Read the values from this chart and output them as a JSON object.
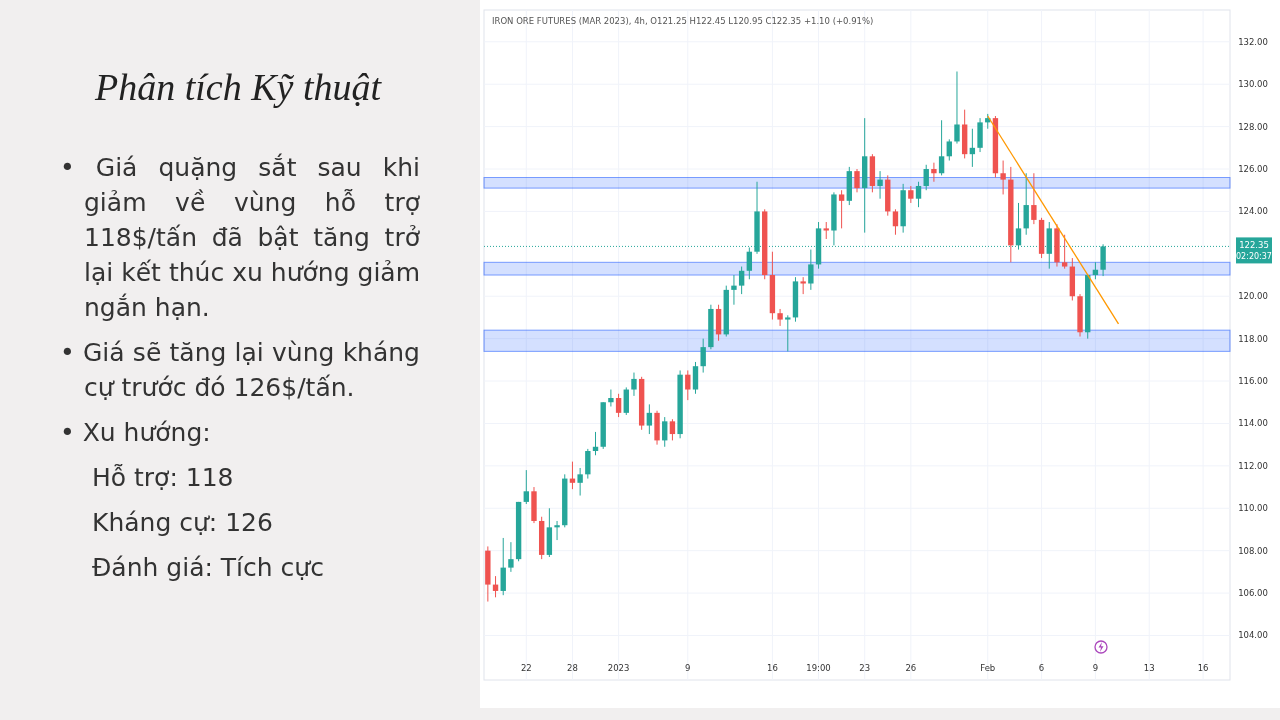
{
  "chart_data": [
    {
      "type": "other",
      "title": "Phân tích Kỹ thuật",
      "annotations": [
        "• Giá quặng sắt sau khi giảm về vùng hỗ trợ 118$/tấn đã bật tăng trở lại kết thúc xu hướng giảm ngắn hạn.",
        "• Giá sẽ tăng lại vùng kháng cự trước đó 126$/tấn.",
        "• Xu hướng:",
        "Hỗ trợ: 118",
        "Kháng cự: 126",
        "Đánh giá: Tích cực"
      ]
    },
    {
      "type": "candlestick",
      "title": "IRON ORE FUTURES (MAR 2023), 4h, O121.25 H122.45 L120.95 C122.35 +1.10 (+0.91%)",
      "categories": [
        null,
        null,
        null,
        null,
        null,
        "22",
        null,
        null,
        null,
        null,
        null,
        "28",
        null,
        null,
        null,
        null,
        null,
        "2023",
        null,
        null,
        null,
        null,
        null,
        null,
        null,
        null,
        "9",
        null,
        null,
        null,
        null,
        null,
        null,
        null,
        null,
        null,
        null,
        "16",
        null,
        null,
        null,
        null,
        null,
        "19:00",
        null,
        null,
        null,
        null,
        null,
        "23",
        null,
        null,
        null,
        null,
        null,
        "26",
        null,
        null,
        null,
        null,
        null,
        null,
        null,
        null,
        null,
        "Feb",
        null,
        null,
        null,
        null,
        null,
        null,
        "6",
        null,
        null,
        null,
        null,
        null,
        null,
        "9",
        null,
        null,
        null,
        null,
        null,
        null,
        "13",
        null,
        null,
        null,
        null,
        null,
        null,
        "16",
        null,
        null,
        null
      ],
      "ohlc": [
        [
          108.0,
          108.2,
          105.6,
          106.4
        ],
        [
          106.4,
          106.8,
          105.8,
          106.1
        ],
        [
          106.1,
          108.6,
          105.9,
          107.2
        ],
        [
          107.2,
          108.4,
          107.0,
          107.6
        ],
        [
          107.6,
          110.3,
          107.5,
          110.3
        ],
        [
          110.3,
          111.8,
          110.2,
          110.8
        ],
        [
          110.8,
          111.0,
          109.3,
          109.4
        ],
        [
          109.4,
          109.6,
          107.6,
          107.8
        ],
        [
          107.8,
          110.0,
          107.7,
          109.1
        ],
        [
          109.1,
          109.4,
          108.5,
          109.2
        ],
        [
          109.2,
          111.6,
          109.1,
          111.4
        ],
        [
          111.4,
          112.2,
          110.9,
          111.2
        ],
        [
          111.2,
          111.9,
          110.6,
          111.6
        ],
        [
          111.6,
          112.8,
          111.4,
          112.7
        ],
        [
          112.7,
          113.6,
          112.5,
          112.9
        ],
        [
          112.9,
          115.0,
          112.8,
          115.0
        ],
        [
          115.0,
          115.6,
          114.8,
          115.2
        ],
        [
          115.2,
          115.4,
          114.3,
          114.5
        ],
        [
          114.5,
          115.7,
          114.4,
          115.6
        ],
        [
          115.6,
          116.4,
          115.3,
          116.1
        ],
        [
          116.1,
          116.2,
          113.7,
          113.9
        ],
        [
          113.9,
          114.9,
          113.5,
          114.5
        ],
        [
          114.5,
          114.6,
          113.0,
          113.2
        ],
        [
          113.2,
          114.3,
          112.9,
          114.1
        ],
        [
          114.1,
          114.2,
          113.2,
          113.5
        ],
        [
          113.5,
          116.5,
          113.3,
          116.3
        ],
        [
          116.3,
          116.5,
          115.1,
          115.6
        ],
        [
          115.6,
          116.9,
          115.4,
          116.7
        ],
        [
          116.7,
          118.0,
          116.4,
          117.6
        ],
        [
          117.6,
          119.6,
          117.5,
          119.4
        ],
        [
          119.4,
          119.6,
          117.9,
          118.2
        ],
        [
          118.2,
          120.5,
          118.1,
          120.3
        ],
        [
          120.3,
          121.0,
          119.6,
          120.5
        ],
        [
          120.5,
          121.4,
          120.1,
          121.2
        ],
        [
          121.2,
          122.3,
          120.8,
          122.1
        ],
        [
          122.1,
          125.4,
          122.0,
          124.0
        ],
        [
          124.0,
          124.1,
          120.8,
          121.0
        ],
        [
          121.0,
          122.1,
          118.9,
          119.2
        ],
        [
          119.2,
          119.4,
          118.6,
          118.9
        ],
        [
          118.9,
          119.1,
          117.4,
          119.0
        ],
        [
          119.0,
          120.9,
          118.8,
          120.7
        ],
        [
          120.7,
          120.9,
          120.1,
          120.6
        ],
        [
          120.6,
          122.2,
          120.3,
          121.5
        ],
        [
          121.5,
          123.5,
          121.3,
          123.2
        ],
        [
          123.2,
          123.5,
          122.7,
          123.1
        ],
        [
          123.1,
          124.9,
          122.4,
          124.8
        ],
        [
          124.8,
          125.0,
          123.2,
          124.5
        ],
        [
          124.5,
          126.1,
          124.3,
          125.9
        ],
        [
          125.9,
          126.0,
          124.9,
          125.1
        ],
        [
          125.1,
          128.4,
          123.0,
          126.6
        ],
        [
          126.6,
          126.7,
          124.9,
          125.2
        ],
        [
          125.2,
          125.9,
          124.6,
          125.5
        ],
        [
          125.5,
          125.7,
          123.8,
          124.0
        ],
        [
          124.0,
          124.1,
          122.9,
          123.3
        ],
        [
          123.3,
          125.3,
          123.0,
          125.0
        ],
        [
          125.0,
          125.2,
          124.4,
          124.6
        ],
        [
          124.6,
          125.4,
          124.2,
          125.2
        ],
        [
          125.2,
          126.2,
          125.0,
          126.0
        ],
        [
          126.0,
          126.3,
          125.4,
          125.8
        ],
        [
          125.8,
          128.3,
          125.7,
          126.6
        ],
        [
          126.6,
          127.4,
          126.4,
          127.3
        ],
        [
          127.3,
          130.6,
          127.2,
          128.1
        ],
        [
          128.1,
          128.8,
          126.5,
          126.7
        ],
        [
          126.7,
          127.9,
          126.1,
          127.0
        ],
        [
          127.0,
          128.4,
          126.8,
          128.2
        ],
        [
          128.2,
          128.6,
          127.9,
          128.4
        ],
        [
          128.4,
          128.5,
          125.6,
          125.8
        ],
        [
          125.8,
          126.4,
          124.8,
          125.5
        ],
        [
          125.5,
          126.1,
          121.6,
          122.4
        ],
        [
          122.4,
          124.4,
          122.2,
          123.2
        ],
        [
          123.2,
          125.8,
          122.9,
          124.3
        ],
        [
          124.3,
          125.8,
          123.4,
          123.6
        ],
        [
          123.6,
          123.7,
          121.8,
          122.0
        ],
        [
          122.0,
          123.5,
          121.3,
          123.2
        ],
        [
          123.2,
          123.4,
          121.4,
          121.6
        ],
        [
          121.6,
          122.9,
          121.3,
          121.4
        ],
        [
          121.4,
          121.8,
          119.8,
          120.0
        ],
        [
          120.0,
          120.1,
          118.1,
          118.3
        ],
        [
          118.3,
          121.0,
          118.0,
          121.0
        ],
        [
          121.0,
          121.6,
          120.8,
          121.25
        ],
        [
          121.25,
          122.45,
          120.95,
          122.35
        ],
        null,
        null,
        null,
        null,
        null,
        null,
        null,
        null,
        null,
        null,
        null,
        null,
        null,
        null,
        null,
        null
      ],
      "colors": [
        "#ef5350",
        "#ef5350",
        "#26a69a",
        "#26a69a",
        "#26a69a",
        "#26a69a",
        "#ef5350",
        "#ef5350",
        "#26a69a",
        "#26a69a",
        "#26a69a",
        "#ef5350",
        "#26a69a",
        "#26a69a",
        "#26a69a",
        "#26a69a",
        "#26a69a",
        "#ef5350",
        "#26a69a",
        "#26a69a",
        "#ef5350",
        "#26a69a",
        "#ef5350",
        "#26a69a",
        "#ef5350",
        "#26a69a",
        "#ef5350",
        "#26a69a",
        "#26a69a",
        "#26a69a",
        "#ef5350",
        "#26a69a",
        "#26a69a",
        "#26a69a",
        "#26a69a",
        "#26a69a",
        "#ef5350",
        "#ef5350",
        "#ef5350",
        "#26a69a",
        "#26a69a",
        "#ef5350",
        "#26a69a",
        "#26a69a",
        "#ef5350",
        "#26a69a",
        "#ef5350",
        "#26a69a",
        "#ef5350",
        "#26a69a",
        "#ef5350",
        "#26a69a",
        "#ef5350",
        "#ef5350",
        "#26a69a",
        "#ef5350",
        "#26a69a",
        "#26a69a",
        "#ef5350",
        "#26a69a",
        "#26a69a",
        "#26a69a",
        "#ef5350",
        "#26a69a",
        "#26a69a",
        "#26a69a",
        "#ef5350",
        "#ef5350",
        "#ef5350",
        "#26a69a",
        "#26a69a",
        "#ef5350",
        "#ef5350",
        "#26a69a",
        "#ef5350",
        "#ef5350",
        "#ef5350",
        "#ef5350",
        "#26a69a",
        "#26a69a",
        "#26a69a",
        null,
        null,
        null,
        null,
        null,
        null,
        null,
        null,
        null,
        null,
        null,
        null,
        null,
        null,
        null,
        null
      ],
      "series": [
        {
          "type": "line",
          "color": "#ff9800",
          "values": [
            null,
            null,
            null,
            null,
            null,
            null,
            null,
            null,
            null,
            null,
            null,
            null,
            null,
            null,
            null,
            null,
            null,
            null,
            null,
            null,
            null,
            null,
            null,
            null,
            null,
            null,
            null,
            null,
            null,
            null,
            null,
            null,
            null,
            null,
            null,
            null,
            null,
            null,
            null,
            null,
            null,
            null,
            null,
            null,
            null,
            null,
            null,
            null,
            null,
            null,
            null,
            null,
            null,
            null,
            null,
            null,
            null,
            null,
            null,
            null,
            null,
            null,
            null,
            null,
            null,
            128.5,
            null,
            null,
            null,
            null,
            null,
            null,
            null,
            null,
            null,
            null,
            null,
            null,
            null,
            null,
            null,
            null,
            118.7,
            null,
            null,
            null,
            null,
            null,
            null,
            null,
            null,
            null,
            null,
            null,
            null,
            null,
            null
          ]
        }
      ],
      "ylim": [
        101.9,
        133.5
      ],
      "yticks": [
        {
          "value": 104,
          "label": "104.00"
        },
        {
          "value": 106,
          "label": "106.00"
        },
        {
          "value": 108,
          "label": "108.00"
        },
        {
          "value": 110,
          "label": "110.00"
        },
        {
          "value": 112,
          "label": "112.00"
        },
        {
          "value": 114,
          "label": "114.00"
        },
        {
          "value": 116,
          "label": "116.00"
        },
        {
          "value": 118,
          "label": "118.00"
        },
        {
          "value": 120,
          "label": "120.00"
        },
        {
          "value": 124,
          "label": "124.00"
        },
        {
          "value": 126,
          "label": "126.00"
        },
        {
          "value": 128,
          "label": "128.00"
        },
        {
          "value": 130,
          "label": "130.00"
        },
        {
          "value": 132,
          "label": "132.00"
        }
      ],
      "ref_lines": [
        {
          "axis": "y",
          "value": 122.35,
          "label": "122.35",
          "color": "#26a69a",
          "line_style": "dotted"
        }
      ],
      "bands": [
        {
          "axis": "y",
          "from": 117.4,
          "to": 118.4,
          "color": "#2962ff"
        },
        {
          "axis": "y",
          "from": 125.1,
          "to": 125.6,
          "color": "#2962ff"
        },
        {
          "axis": "y",
          "from": 121.0,
          "to": 121.6,
          "color": "#2962ff"
        }
      ],
      "annotations": [
        "02:20:37"
      ],
      "grid": true
    }
  ]
}
